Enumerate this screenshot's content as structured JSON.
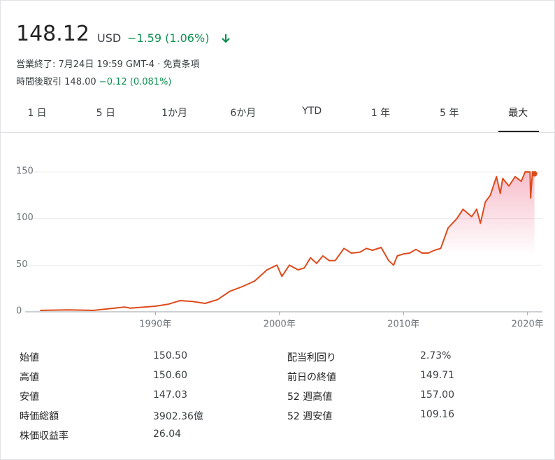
{
  "header": {
    "price": "148.12",
    "currency": "USD",
    "change": "−1.59 (1.06%)",
    "status": "営業終了: 7月24日 19:59 GMT-4",
    "separator": "·",
    "disclaimer": "免責条項",
    "after_hours_label": "時間後取引",
    "after_hours_price": "148.00",
    "after_hours_change": "−0.12 (0.081%)"
  },
  "tabs": {
    "items": [
      "1 日",
      "5 日",
      "1か月",
      "6か月",
      "YTD",
      "1 年",
      "5 年",
      "最大"
    ],
    "selected": 7
  },
  "chart_data": {
    "type": "line",
    "color": "#dd4b1b",
    "grid": true,
    "x": [
      1980.7,
      1983,
      1985,
      1987.5,
      1988,
      1990,
      1991,
      1992,
      1993,
      1994,
      1995,
      1996,
      1997,
      1998,
      1999,
      1999.8,
      2000.2,
      2000.8,
      2001.5,
      2002,
      2002.5,
      2003,
      2003.5,
      2004,
      2004.5,
      2005.2,
      2005.8,
      2006.5,
      2007,
      2007.5,
      2008.2,
      2008.8,
      2009.2,
      2009.5,
      2010,
      2010.5,
      2011,
      2011.5,
      2012,
      2012.5,
      2013,
      2013.6,
      2014.3,
      2014.8,
      2015.5,
      2015.9,
      2016.2,
      2016.6,
      2017,
      2017.5,
      2017.8,
      2018,
      2018.5,
      2019,
      2019.5,
      2019.8,
      2020.2,
      2020.25,
      2020.4,
      2020.56
    ],
    "values": [
      1.5,
      2,
      1.5,
      5,
      4,
      6,
      8,
      12,
      11,
      9,
      13,
      22,
      27,
      33,
      45,
      50,
      38,
      50,
      45,
      47,
      58,
      52,
      60,
      55,
      55,
      68,
      63,
      64,
      68,
      66,
      69,
      55,
      50,
      60,
      62,
      63,
      67,
      63,
      63,
      66,
      68,
      90,
      100,
      110,
      102,
      110,
      95,
      118,
      125,
      145,
      127,
      143,
      135,
      145,
      140,
      150,
      150,
      122,
      150,
      148
    ],
    "xlim": [
      1979.5,
      2021.2
    ],
    "ylim": [
      0,
      165
    ],
    "yticks": [
      0,
      50,
      100,
      150
    ],
    "xticks": [
      {
        "value": 1990,
        "label": "1990年"
      },
      {
        "value": 2000,
        "label": "2000年"
      },
      {
        "value": 2010,
        "label": "2010年"
      },
      {
        "value": 2020,
        "label": "2020年"
      }
    ]
  },
  "stats": {
    "left": [
      [
        "始値",
        "150.50"
      ],
      [
        "高値",
        "150.60"
      ],
      [
        "安値",
        "147.03"
      ],
      [
        "時価総額",
        "3902.36億"
      ],
      [
        "株価収益率",
        "26.04"
      ]
    ],
    "right": [
      [
        "配当利回り",
        "2.73%"
      ],
      [
        "前日の終値",
        "149.71"
      ],
      [
        "52 週高値",
        "157.00"
      ],
      [
        "52 週安値",
        "109.16"
      ]
    ]
  }
}
